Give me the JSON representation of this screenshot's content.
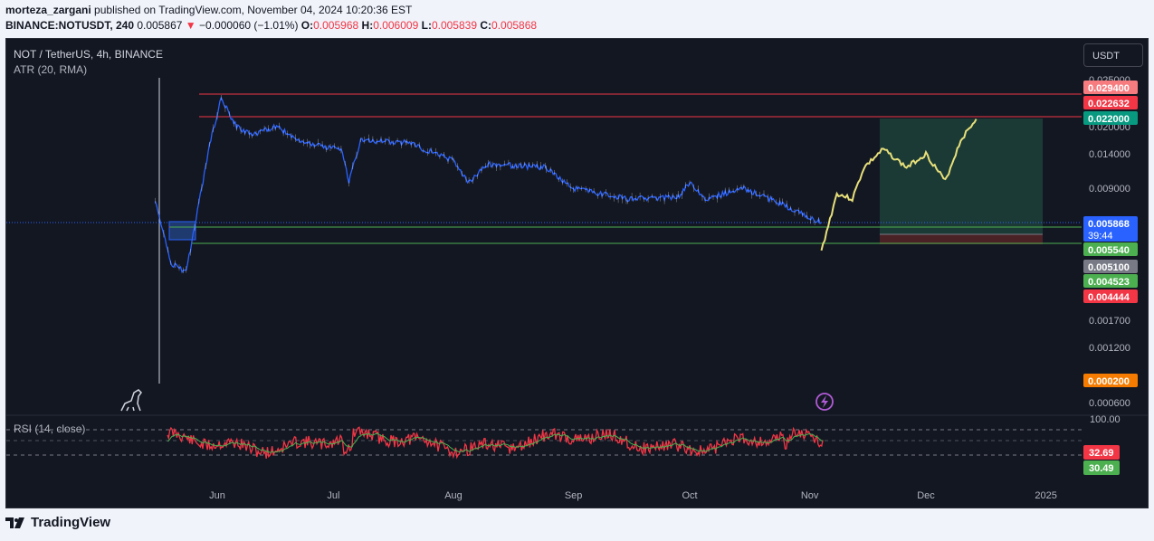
{
  "header": {
    "user": "morteza_zargani",
    "published": "published on TradingView.com, November 04, 2024 10:20:36 EST",
    "symbol": "BINANCE:NOTUSDT, 240",
    "last": "0.005867",
    "change": "−0.000060 (−1.01%)",
    "o_label": "O:",
    "o": "0.005968",
    "h_label": "H:",
    "h": "0.006009",
    "l_label": "L:",
    "l": "0.005839",
    "c_label": "C:",
    "c": "0.005868"
  },
  "legend": {
    "title": "NOT / TetherUS, 4h, BINANCE",
    "atr": "ATR (20, RMA)",
    "rsi": "RSI (14, close)"
  },
  "currency_button": "USDT",
  "brand": "TradingView",
  "colors": {
    "background": "#131722",
    "price_line": "#2962ff",
    "projection": "#e8e07a",
    "resistance": "#f23645",
    "support": "#4caf50",
    "rsi_line": "#f23645",
    "rsi_ma": "#4caf50",
    "target_zone": "#1b3a36",
    "stop_zone": "#4a2226"
  },
  "chart_data": [
    {
      "type": "line",
      "title": "NOT / TetherUS, 4h, BINANCE",
      "xlabel": "",
      "ylabel": "",
      "x_ticks": [
        "Jun",
        "Jul",
        "Aug",
        "Sep",
        "Oct",
        "Nov",
        "Dec",
        "2025"
      ],
      "y_ticks": [
        "0.025000",
        "0.020000",
        "0.014000",
        "0.009000",
        "0.001700",
        "0.001200",
        "0.000600"
      ],
      "y_scale": "nonlinear",
      "ylim": [
        0.0006,
        0.025
      ],
      "price_points": [
        {
          "x": "2024-05-16",
          "y": 0.0078
        },
        {
          "x": "2024-05-20",
          "y": 0.0052
        },
        {
          "x": "2024-05-24",
          "y": 0.0049
        },
        {
          "x": "2024-05-28",
          "y": 0.009
        },
        {
          "x": "2024-05-30",
          "y": 0.016
        },
        {
          "x": "2024-06-02",
          "y": 0.028
        },
        {
          "x": "2024-06-06",
          "y": 0.02
        },
        {
          "x": "2024-06-10",
          "y": 0.018
        },
        {
          "x": "2024-06-16",
          "y": 0.02
        },
        {
          "x": "2024-06-25",
          "y": 0.016
        },
        {
          "x": "2024-07-03",
          "y": 0.015
        },
        {
          "x": "2024-07-05",
          "y": 0.01
        },
        {
          "x": "2024-07-08",
          "y": 0.017
        },
        {
          "x": "2024-07-20",
          "y": 0.0165
        },
        {
          "x": "2024-08-01",
          "y": 0.013
        },
        {
          "x": "2024-08-05",
          "y": 0.0098
        },
        {
          "x": "2024-08-10",
          "y": 0.0125
        },
        {
          "x": "2024-08-25",
          "y": 0.012
        },
        {
          "x": "2024-09-01",
          "y": 0.009
        },
        {
          "x": "2024-09-15",
          "y": 0.008
        },
        {
          "x": "2024-09-28",
          "y": 0.0082
        },
        {
          "x": "2024-10-01",
          "y": 0.0098
        },
        {
          "x": "2024-10-05",
          "y": 0.008
        },
        {
          "x": "2024-10-15",
          "y": 0.009
        },
        {
          "x": "2024-10-25",
          "y": 0.0075
        },
        {
          "x": "2024-11-04",
          "y": 0.005868
        }
      ],
      "projection_points": [
        {
          "x": "2024-11-04",
          "y": 0.0055
        },
        {
          "x": "2024-11-08",
          "y": 0.0085
        },
        {
          "x": "2024-11-12",
          "y": 0.008
        },
        {
          "x": "2024-11-15",
          "y": 0.012
        },
        {
          "x": "2024-11-20",
          "y": 0.015
        },
        {
          "x": "2024-11-26",
          "y": 0.012
        },
        {
          "x": "2024-12-01",
          "y": 0.014
        },
        {
          "x": "2024-12-06",
          "y": 0.01
        },
        {
          "x": "2024-12-10",
          "y": 0.017
        },
        {
          "x": "2024-12-14",
          "y": 0.022
        }
      ],
      "horizontal_lines": [
        {
          "value": 0.0294,
          "color": "#f23645"
        },
        {
          "value": 0.022632,
          "color": "#f23645"
        },
        {
          "value": 0.00554,
          "color": "#4caf50"
        },
        {
          "value": 0.004523,
          "color": "#4caf50"
        }
      ],
      "price_labels": [
        {
          "value": "0.029400",
          "bg": "#f77c80"
        },
        {
          "value": "0.022632",
          "bg": "#f23645"
        },
        {
          "value": "0.022000",
          "bg": "#089981"
        },
        {
          "value": "0.005868",
          "bg": "#2962ff",
          "sub": "39:44"
        },
        {
          "value": "0.005540",
          "bg": "#4caf50"
        },
        {
          "value": "0.005100",
          "bg": "#787b86"
        },
        {
          "value": "0.004523",
          "bg": "#4caf50"
        },
        {
          "value": "0.004444",
          "bg": "#f23645"
        },
        {
          "value": "0.000200",
          "bg": "#f57c00"
        }
      ],
      "position_tool": {
        "target": 0.022,
        "entry": 0.0051,
        "stop": 0.004444
      }
    },
    {
      "type": "line",
      "title": "RSI (14, close)",
      "y_ticks": [
        "100.00"
      ],
      "rsi_value": "32.69",
      "rsi_ma_value": "30.49"
    }
  ]
}
